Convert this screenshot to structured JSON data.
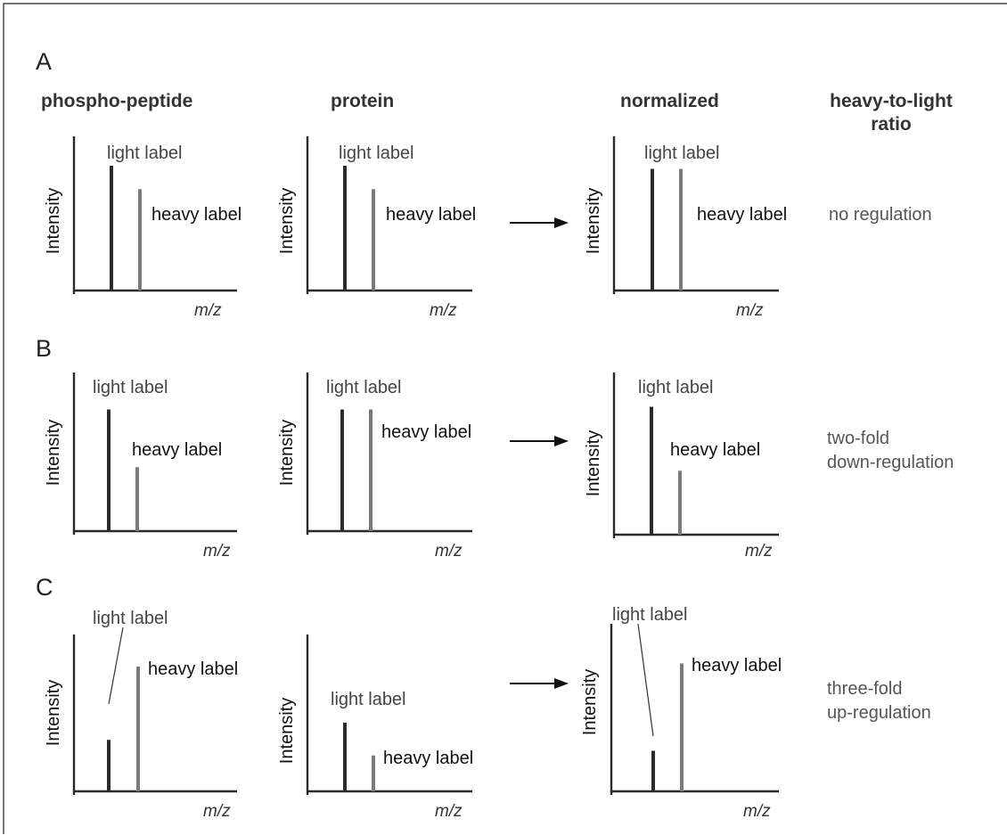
{
  "headers": {
    "phospho": "phospho-peptide",
    "protein": "protein",
    "normalized": "normalized",
    "ratio_line1": "heavy-to-light",
    "ratio_line2": "ratio"
  },
  "axis": {
    "ylabel": "Intensity",
    "xlabel": "m/z"
  },
  "labels": {
    "light": "light label",
    "heavy": "heavy label"
  },
  "panels": [
    {
      "letter": "A",
      "result_line1": "no regulation",
      "result_line2": "",
      "plots": {
        "phospho": {
          "light": 0.8,
          "heavy": 0.65
        },
        "protein": {
          "light": 0.8,
          "heavy": 0.65
        },
        "normalized": {
          "light": 0.78,
          "heavy": 0.78
        }
      }
    },
    {
      "letter": "B",
      "result_line1": "two-fold",
      "result_line2": "down-regulation",
      "plots": {
        "phospho": {
          "light": 0.78,
          "heavy": 0.41
        },
        "protein": {
          "light": 0.78,
          "heavy": 0.78
        },
        "normalized": {
          "light": 0.82,
          "heavy": 0.41
        }
      }
    },
    {
      "letter": "C",
      "result_line1": "three-fold",
      "result_line2": "up-regulation",
      "plots": {
        "phospho": {
          "light": 0.33,
          "heavy": 0.8
        },
        "protein": {
          "light": 0.44,
          "heavy": 0.23
        },
        "normalized": {
          "light": 0.26,
          "heavy": 0.82
        }
      }
    }
  ]
}
